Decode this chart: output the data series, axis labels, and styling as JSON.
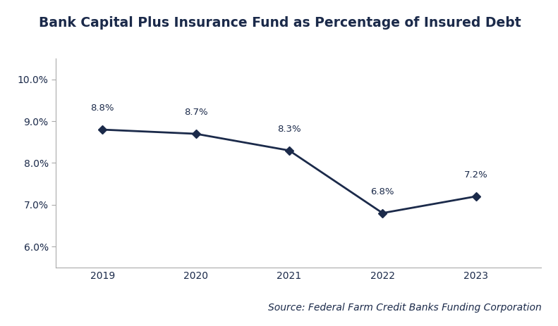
{
  "title": "Bank Capital Plus Insurance Fund as Percentage of Insured Debt",
  "years": [
    2019,
    2020,
    2021,
    2022,
    2023
  ],
  "values": [
    0.088,
    0.087,
    0.083,
    0.068,
    0.072
  ],
  "labels": [
    "8.8%",
    "8.7%",
    "8.3%",
    "6.8%",
    "7.2%"
  ],
  "line_color": "#1B2A4A",
  "marker": "D",
  "marker_size": 6,
  "line_width": 2.0,
  "ylim": [
    0.055,
    0.105
  ],
  "yticks": [
    0.06,
    0.07,
    0.08,
    0.09,
    0.1
  ],
  "ytick_labels": [
    "6.0%",
    "7.0%",
    "8.0%",
    "9.0%",
    "10.0%"
  ],
  "source_text": "Source: Federal Farm Credit Banks Funding Corporation",
  "title_color": "#1B2A4A",
  "title_fontsize": 13.5,
  "label_fontsize": 9.5,
  "tick_fontsize": 10,
  "source_fontsize": 10,
  "axis_color": "#1B2A4A",
  "spine_color": "#AAAAAA",
  "background_color": "#FFFFFF"
}
